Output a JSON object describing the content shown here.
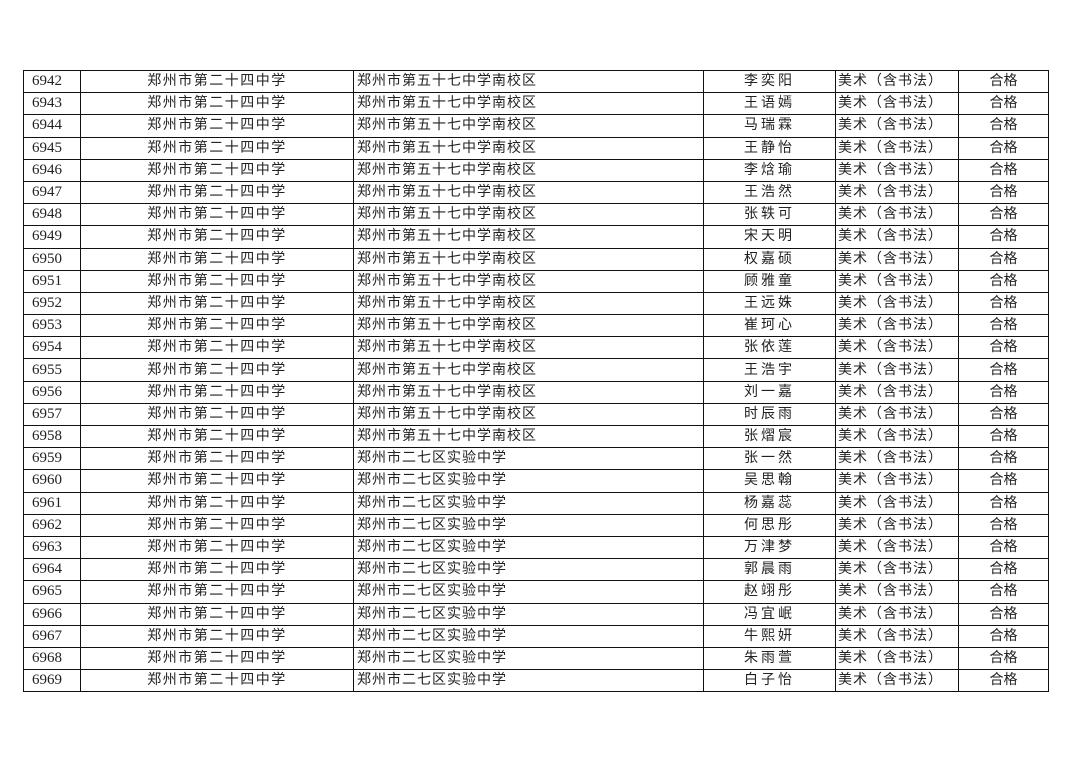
{
  "table": {
    "rows": [
      {
        "id": "6942",
        "from": "郑州市第二十四中学",
        "to": "郑州市第五十七中学南校区",
        "name": "李奕阳",
        "subject": "美术（含书法）",
        "result": "合格"
      },
      {
        "id": "6943",
        "from": "郑州市第二十四中学",
        "to": "郑州市第五十七中学南校区",
        "name": "王语嫣",
        "subject": "美术（含书法）",
        "result": "合格"
      },
      {
        "id": "6944",
        "from": "郑州市第二十四中学",
        "to": "郑州市第五十七中学南校区",
        "name": "马瑞霖",
        "subject": "美术（含书法）",
        "result": "合格"
      },
      {
        "id": "6945",
        "from": "郑州市第二十四中学",
        "to": "郑州市第五十七中学南校区",
        "name": "王静怡",
        "subject": "美术（含书法）",
        "result": "合格"
      },
      {
        "id": "6946",
        "from": "郑州市第二十四中学",
        "to": "郑州市第五十七中学南校区",
        "name": "李焓瑜",
        "subject": "美术（含书法）",
        "result": "合格"
      },
      {
        "id": "6947",
        "from": "郑州市第二十四中学",
        "to": "郑州市第五十七中学南校区",
        "name": "王浩然",
        "subject": "美术（含书法）",
        "result": "合格"
      },
      {
        "id": "6948",
        "from": "郑州市第二十四中学",
        "to": "郑州市第五十七中学南校区",
        "name": "张轶可",
        "subject": "美术（含书法）",
        "result": "合格"
      },
      {
        "id": "6949",
        "from": "郑州市第二十四中学",
        "to": "郑州市第五十七中学南校区",
        "name": "宋天明",
        "subject": "美术（含书法）",
        "result": "合格"
      },
      {
        "id": "6950",
        "from": "郑州市第二十四中学",
        "to": "郑州市第五十七中学南校区",
        "name": "权嘉硕",
        "subject": "美术（含书法）",
        "result": "合格"
      },
      {
        "id": "6951",
        "from": "郑州市第二十四中学",
        "to": "郑州市第五十七中学南校区",
        "name": "顾雅童",
        "subject": "美术（含书法）",
        "result": "合格"
      },
      {
        "id": "6952",
        "from": "郑州市第二十四中学",
        "to": "郑州市第五十七中学南校区",
        "name": "王远姝",
        "subject": "美术（含书法）",
        "result": "合格"
      },
      {
        "id": "6953",
        "from": "郑州市第二十四中学",
        "to": "郑州市第五十七中学南校区",
        "name": "崔珂心",
        "subject": "美术（含书法）",
        "result": "合格"
      },
      {
        "id": "6954",
        "from": "郑州市第二十四中学",
        "to": "郑州市第五十七中学南校区",
        "name": "张依莲",
        "subject": "美术（含书法）",
        "result": "合格"
      },
      {
        "id": "6955",
        "from": "郑州市第二十四中学",
        "to": "郑州市第五十七中学南校区",
        "name": "王浩宇",
        "subject": "美术（含书法）",
        "result": "合格"
      },
      {
        "id": "6956",
        "from": "郑州市第二十四中学",
        "to": "郑州市第五十七中学南校区",
        "name": "刘一嘉",
        "subject": "美术（含书法）",
        "result": "合格"
      },
      {
        "id": "6957",
        "from": "郑州市第二十四中学",
        "to": "郑州市第五十七中学南校区",
        "name": "时辰雨",
        "subject": "美术（含书法）",
        "result": "合格"
      },
      {
        "id": "6958",
        "from": "郑州市第二十四中学",
        "to": "郑州市第五十七中学南校区",
        "name": "张熠宸",
        "subject": "美术（含书法）",
        "result": "合格"
      },
      {
        "id": "6959",
        "from": "郑州市第二十四中学",
        "to": "郑州市二七区实验中学",
        "name": "张一然",
        "subject": "美术（含书法）",
        "result": "合格"
      },
      {
        "id": "6960",
        "from": "郑州市第二十四中学",
        "to": "郑州市二七区实验中学",
        "name": "吴思翰",
        "subject": "美术（含书法）",
        "result": "合格"
      },
      {
        "id": "6961",
        "from": "郑州市第二十四中学",
        "to": "郑州市二七区实验中学",
        "name": "杨嘉蕊",
        "subject": "美术（含书法）",
        "result": "合格"
      },
      {
        "id": "6962",
        "from": "郑州市第二十四中学",
        "to": "郑州市二七区实验中学",
        "name": "何思彤",
        "subject": "美术（含书法）",
        "result": "合格"
      },
      {
        "id": "6963",
        "from": "郑州市第二十四中学",
        "to": "郑州市二七区实验中学",
        "name": "万津梦",
        "subject": "美术（含书法）",
        "result": "合格"
      },
      {
        "id": "6964",
        "from": "郑州市第二十四中学",
        "to": "郑州市二七区实验中学",
        "name": "郭晨雨",
        "subject": "美术（含书法）",
        "result": "合格"
      },
      {
        "id": "6965",
        "from": "郑州市第二十四中学",
        "to": "郑州市二七区实验中学",
        "name": "赵翊彤",
        "subject": "美术（含书法）",
        "result": "合格"
      },
      {
        "id": "6966",
        "from": "郑州市第二十四中学",
        "to": "郑州市二七区实验中学",
        "name": "冯宜岷",
        "subject": "美术（含书法）",
        "result": "合格"
      },
      {
        "id": "6967",
        "from": "郑州市第二十四中学",
        "to": "郑州市二七区实验中学",
        "name": "牛熙妍",
        "subject": "美术（含书法）",
        "result": "合格"
      },
      {
        "id": "6968",
        "from": "郑州市第二十四中学",
        "to": "郑州市二七区实验中学",
        "name": "朱雨萱",
        "subject": "美术（含书法）",
        "result": "合格"
      },
      {
        "id": "6969",
        "from": "郑州市第二十四中学",
        "to": "郑州市二七区实验中学",
        "name": "白子怡",
        "subject": "美术（含书法）",
        "result": "合格"
      }
    ]
  }
}
